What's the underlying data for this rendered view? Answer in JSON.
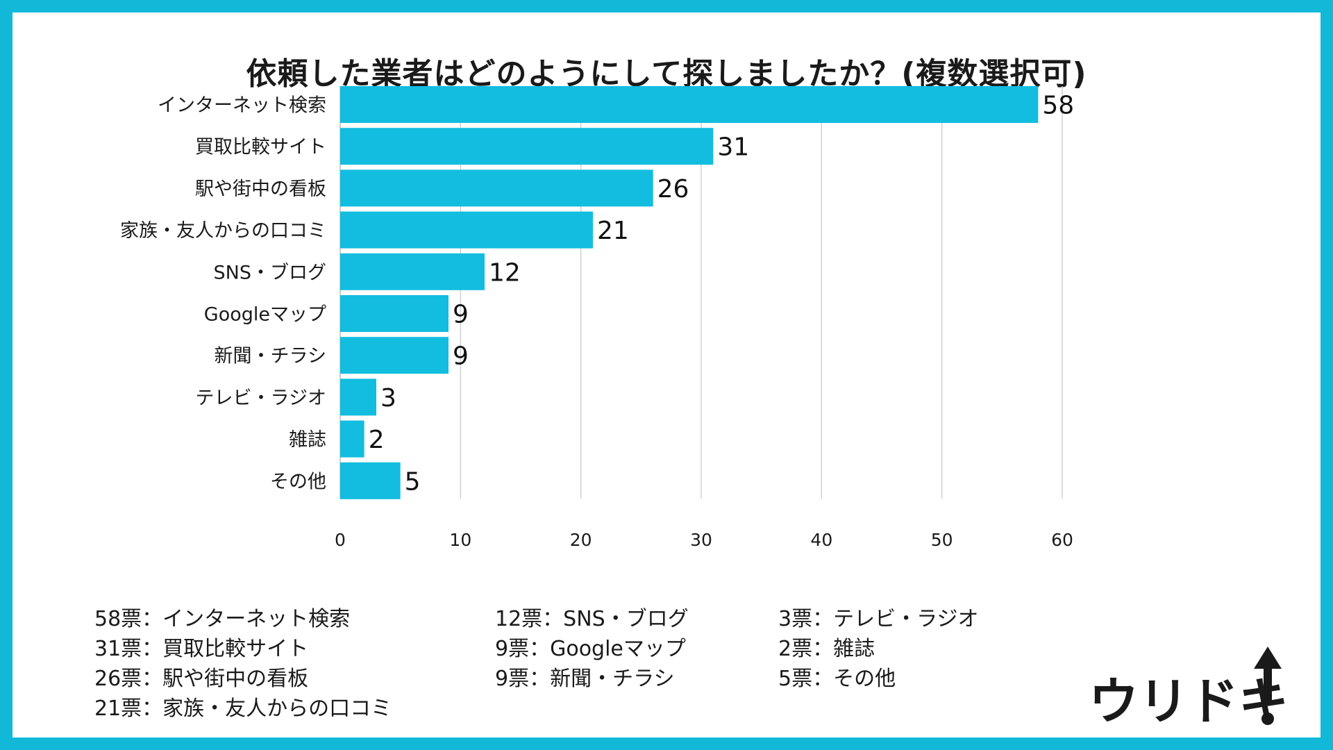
{
  "title": "依頼した業者はどのようにして探しましたか？(複数選択可)",
  "chart_data": {
    "type": "bar",
    "orientation": "horizontal",
    "categories": [
      "インターネット検索",
      "買取比較サイト",
      "駅や街中の看板",
      "家族・友人からの口コミ",
      "SNS・ブログ",
      "Googleマップ",
      "新聞・チラシ",
      "テレビ・ラジオ",
      "雑誌",
      "その他"
    ],
    "values": [
      58,
      31,
      26,
      21,
      12,
      9,
      9,
      3,
      2,
      5
    ],
    "xlim": [
      0,
      60
    ],
    "x_ticks": [
      0,
      10,
      20,
      30,
      40,
      50,
      60
    ],
    "grid": "vertical",
    "bar_color": "#12bde0"
  },
  "summary": {
    "columns": [
      [
        "58票：インターネット検索",
        "31票：買取比較サイト",
        "26票：駅や街中の看板",
        "21票：家族・友人からの口コミ"
      ],
      [
        "12票：SNS・ブログ",
        "9票：Googleマップ",
        "9票：新聞・チラシ"
      ],
      [
        "3票：テレビ・ラジオ",
        "2票：雑誌",
        "5票：その他"
      ]
    ]
  },
  "logo": {
    "text": "ウリドキ",
    "icon": "up-arrow-exclamation-icon"
  },
  "colors": {
    "frame": "#12b8d8",
    "bar": "#12bde0",
    "grid": "#d0d0d0"
  }
}
